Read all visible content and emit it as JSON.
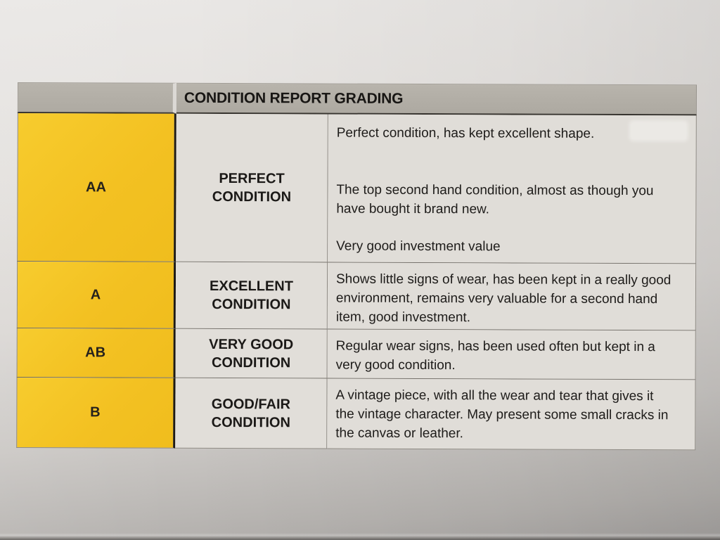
{
  "document": {
    "header": {
      "title": "CONDITION REPORT GRADING"
    },
    "rows": [
      {
        "grade": "AA",
        "label_lines": [
          "PERFECT",
          "CONDITION"
        ],
        "paragraphs": [
          "Perfect condition, has kept excellent shape.",
          "The top second hand condition, almost as though you have bought it brand new.",
          "Very good investment value"
        ]
      },
      {
        "grade": "A",
        "label_lines": [
          "EXCELLENT",
          "CONDITION"
        ],
        "paragraphs": [
          "Shows little signs of wear, has been kept in a really good environment, remains very valuable for a second hand item, good investment."
        ]
      },
      {
        "grade": "AB",
        "label_lines": [
          "VERY GOOD",
          "CONDITION"
        ],
        "paragraphs": [
          "Regular wear signs, has been used often but kept in a very good condition."
        ]
      },
      {
        "grade": "B",
        "label_lines": [
          "GOOD/FAIR",
          "CONDITION"
        ],
        "paragraphs": [
          "A vintage piece, with all the wear and tear that gives it the vintage character. May present some small cracks in the canvas or leather."
        ]
      }
    ],
    "colors": {
      "grade_cell_yellow": "#F3C122",
      "header_bar_gray": "#B3AFA7",
      "cell_background": "#E0DDD8",
      "heavy_border": "#1D1A15",
      "text": "#1E1C1A"
    }
  }
}
